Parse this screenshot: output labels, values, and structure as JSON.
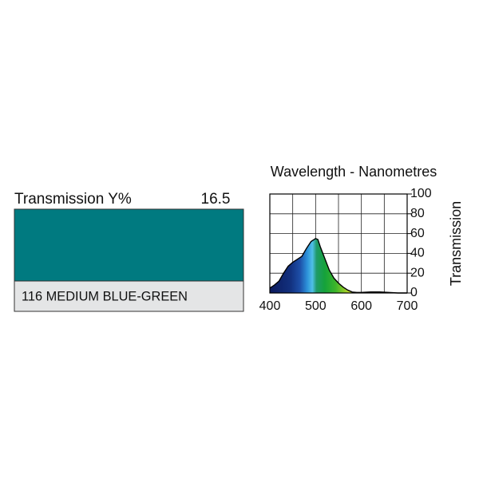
{
  "swatch": {
    "label": "Transmission Y%",
    "y_value": 16.5,
    "color": "#007a80",
    "name": "116 MEDIUM BLUE-GREEN"
  },
  "chart_data": {
    "type": "area",
    "title": "Wavelength - Nanometres",
    "y_label": "Transmission",
    "x": [
      400,
      410,
      420,
      430,
      440,
      450,
      460,
      470,
      480,
      490,
      500,
      505,
      510,
      520,
      530,
      540,
      550,
      560,
      570,
      580,
      590,
      600,
      620,
      640,
      660,
      680,
      700
    ],
    "values": [
      5,
      8,
      12,
      20,
      27,
      31,
      34,
      37,
      45,
      52,
      55,
      54,
      47,
      35,
      23,
      15,
      10,
      6,
      3,
      1,
      0.5,
      0.5,
      1,
      1,
      0.5,
      0,
      0
    ],
    "xlim": [
      400,
      700
    ],
    "ylim": [
      0,
      100
    ],
    "xticks": [
      400,
      500,
      600,
      700
    ],
    "xminor_ticks": [
      450,
      550,
      650
    ],
    "yticks": [
      0,
      20,
      40,
      60,
      80,
      100
    ],
    "grid": true
  }
}
